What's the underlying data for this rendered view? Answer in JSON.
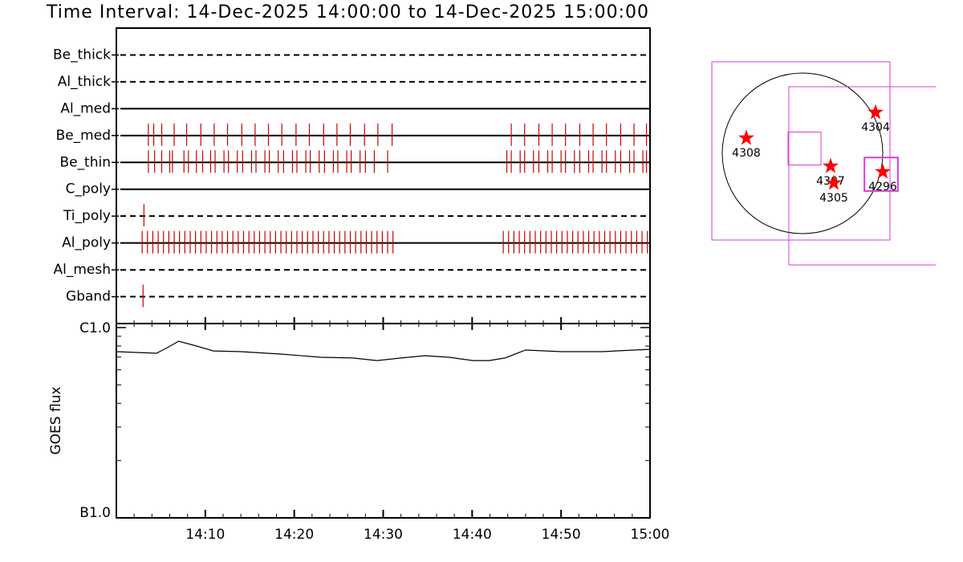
{
  "chart_data": [
    {
      "type": "timeline",
      "title": "Time Interval: 14-Dec-2025 14:00:00 to 14-Dec-2025 15:00:00",
      "categories": [
        "Be_thick",
        "Al_thick",
        "Al_med",
        "Be_med",
        "Be_thin",
        "C_poly",
        "Ti_poly",
        "Al_poly",
        "Al_mesh",
        "Gband"
      ],
      "line_styles": [
        "dashed",
        "dashed",
        "solid",
        "solid",
        "solid",
        "solid",
        "dashed",
        "solid",
        "dashed",
        "dashed"
      ],
      "events": [
        [],
        [],
        [],
        [
          3.6,
          4.2,
          5.1,
          6.5,
          7.9,
          9.5,
          11.0,
          12.5,
          14.1,
          15.6,
          17.1,
          18.6,
          20.2,
          21.7,
          23.3,
          24.8,
          26.3,
          27.9,
          29.4,
          31.0,
          44.4,
          45.9,
          47.5,
          49.0,
          50.5,
          52.1,
          53.6,
          55.1,
          56.7,
          58.2,
          59.6
        ],
        [
          3.6,
          4.3,
          5.1,
          6.0,
          6.3,
          7.6,
          8.1,
          9.0,
          9.7,
          10.6,
          11.1,
          12.1,
          12.6,
          13.6,
          14.2,
          15.2,
          15.7,
          16.7,
          17.2,
          18.2,
          18.8,
          19.8,
          20.3,
          21.3,
          21.8,
          22.8,
          23.4,
          24.4,
          24.9,
          25.9,
          26.4,
          27.4,
          28.0,
          29.0,
          30.5,
          43.9,
          44.4,
          45.4,
          45.9,
          46.9,
          47.5,
          48.5,
          49.0,
          50.0,
          50.5,
          51.5,
          52.1,
          53.1,
          53.6,
          54.6,
          55.1,
          56.1,
          56.7,
          57.7,
          58.2,
          59.2,
          59.6
        ],
        [],
        [
          3.1
        ],
        [
          2.9,
          3.5,
          4.1,
          4.7,
          5.3,
          5.9,
          6.5,
          7.1,
          7.7,
          8.3,
          8.9,
          9.5,
          10.1,
          10.7,
          11.3,
          11.9,
          12.5,
          13.1,
          13.7,
          14.3,
          14.9,
          15.5,
          16.1,
          16.7,
          17.3,
          17.9,
          18.5,
          19.1,
          19.7,
          20.3,
          20.9,
          21.5,
          22.1,
          22.7,
          23.3,
          23.9,
          24.5,
          25.1,
          25.7,
          26.3,
          26.9,
          27.5,
          28.1,
          28.7,
          29.3,
          29.9,
          30.5,
          31.1,
          43.5,
          44.1,
          44.7,
          45.3,
          45.9,
          46.5,
          47.1,
          47.7,
          48.3,
          48.9,
          49.5,
          50.1,
          50.7,
          51.3,
          51.9,
          52.5,
          53.1,
          53.7,
          54.3,
          54.9,
          55.5,
          56.1,
          56.7,
          57.3,
          57.9,
          58.5,
          59.1,
          59.7
        ],
        [],
        [
          3.0
        ]
      ],
      "event_color": "#cc0000",
      "xlim": [
        0,
        60
      ]
    },
    {
      "type": "line",
      "ylabel": "GOES flux",
      "x": [
        0,
        4.5,
        5.9,
        7.0,
        8.7,
        10.9,
        14.0,
        18.5,
        23.0,
        26.6,
        29.3,
        32.0,
        34.7,
        37.4,
        40.1,
        41.9,
        43.7,
        46.0,
        50.1,
        54.6,
        58.2,
        60
      ],
      "values": [
        7.47e-07,
        7.33e-07,
        7.92e-07,
        8.48e-07,
        8.08e-07,
        7.54e-07,
        7.47e-07,
        7.26e-07,
        6.98e-07,
        6.92e-07,
        6.71e-07,
        6.92e-07,
        7.12e-07,
        6.98e-07,
        6.71e-07,
        6.71e-07,
        6.92e-07,
        7.62e-07,
        7.47e-07,
        7.47e-07,
        7.62e-07,
        7.69e-07
      ],
      "color": "#000000",
      "log_y": true,
      "ylim": [
        1e-07,
        1.05e-06
      ],
      "yticks": [
        {
          "value": 1e-07,
          "label": "B1.0"
        },
        {
          "value": 1e-06,
          "label": "C1.0"
        }
      ],
      "yminorticks": [
        2e-07,
        3e-07,
        4e-07,
        5e-07,
        6e-07,
        7e-07,
        8e-07,
        9e-07
      ],
      "xlim": [
        0,
        60
      ],
      "xticks": [
        {
          "value": 10,
          "label": "14:10"
        },
        {
          "value": 20,
          "label": "14:20"
        },
        {
          "value": 30,
          "label": "14:30"
        },
        {
          "value": 40,
          "label": "14:40"
        },
        {
          "value": 50,
          "label": "14:50"
        },
        {
          "value": 60,
          "label": "15:00"
        }
      ],
      "xminorticks": [
        2,
        4,
        6,
        8,
        12,
        14,
        16,
        18,
        22,
        24,
        26,
        28,
        32,
        34,
        36,
        38,
        42,
        44,
        46,
        48,
        52,
        54,
        56,
        58
      ]
    },
    {
      "type": "map",
      "disk_radius": 960,
      "points": [
        {
          "label": "4308",
          "x": -672,
          "y": 182
        },
        {
          "label": "4304",
          "x": 874,
          "y": 490
        },
        {
          "label": "4307",
          "x": 336,
          "y": -154
        },
        {
          "label": "4305",
          "x": 374,
          "y": -355
        },
        {
          "label": "4296",
          "x": 960,
          "y": -221
        }
      ],
      "point_color": "#ff0000",
      "boxes": [
        {
          "x": -19,
          "y": 29,
          "size": 2131
        },
        {
          "x": 902,
          "y": -269,
          "size": 2131
        },
        {
          "x": 24,
          "y": 58,
          "size": 394
        },
        {
          "x": 941,
          "y": -250,
          "size": 400
        }
      ],
      "box_color": "#d63fd6"
    }
  ]
}
